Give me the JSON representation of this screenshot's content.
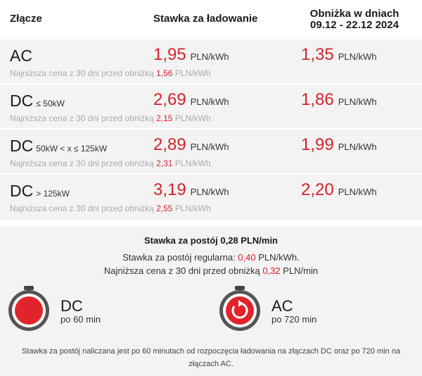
{
  "header": {
    "col_connector": "Złącze",
    "col_rate": "Stawka za ładowanie",
    "col_discount_line1": "Obniżka w dniach",
    "col_discount_line2": "09.12 - 22.12 2024"
  },
  "rows": [
    {
      "connector": "AC",
      "connector_sub": "",
      "rate": "1,95",
      "rate_unit": "PLN/kWh",
      "discount": "1,35",
      "discount_unit": "PLN/kWh",
      "note_prefix": "Najniższa cena z 30 dni przed obniżką ",
      "note_value": "1,56",
      "note_unit": " PLN/kWh"
    },
    {
      "connector": "DC",
      "connector_sub": "≤ 50kW",
      "rate": "2,69",
      "rate_unit": "PLN/kWh",
      "discount": "1,86",
      "discount_unit": "PLN/kWh",
      "note_prefix": "Najniższa cena z 30 dni przed obniżką ",
      "note_value": "2,15",
      "note_unit": " PLN/kWh"
    },
    {
      "connector": "DC",
      "connector_sub": "50kW < x ≤ 125kW",
      "rate": "2,89",
      "rate_unit": "PLN/kWh",
      "discount": "1,99",
      "discount_unit": "PLN/kWh",
      "note_prefix": "Najniższa cena z 30 dni przed obniżką ",
      "note_value": "2,31",
      "note_unit": " PLN/kWh"
    },
    {
      "connector": "DC",
      "connector_sub": "> 125kW",
      "rate": "3,19",
      "rate_unit": "PLN/kWh",
      "discount": "2,20",
      "discount_unit": "PLN/kWh",
      "note_prefix": "Najniższa cena z 30 dni przed obniżką ",
      "note_value": "2,55",
      "note_unit": " PLN/kWh"
    }
  ],
  "idle": {
    "title": "Stawka za postój 0,28 PLN/min",
    "regular_prefix": "Stawka za postój regularna: ",
    "regular_value": "0,40",
    "regular_unit": " PLN/kWh.",
    "lowest_prefix": "Najniższa cena z 30 dni przed obniżką ",
    "lowest_value": "0,32",
    "lowest_unit": " PLN/min",
    "dc_label": "DC",
    "dc_sub": "po 60 min",
    "ac_label": "AC",
    "ac_sub": "po 720 min",
    "footnote": "Stawka za postój naliczana jest po 60 minutach od rozpoczęcia ładowania na złączach DC oraz po 720 min na złączach AC."
  },
  "colors": {
    "accent": "#d3232a",
    "background": "#f3f3f3"
  },
  "icons": {
    "dc_timer": "stopwatch-filled-icon",
    "ac_timer": "stopwatch-refresh-icon"
  }
}
